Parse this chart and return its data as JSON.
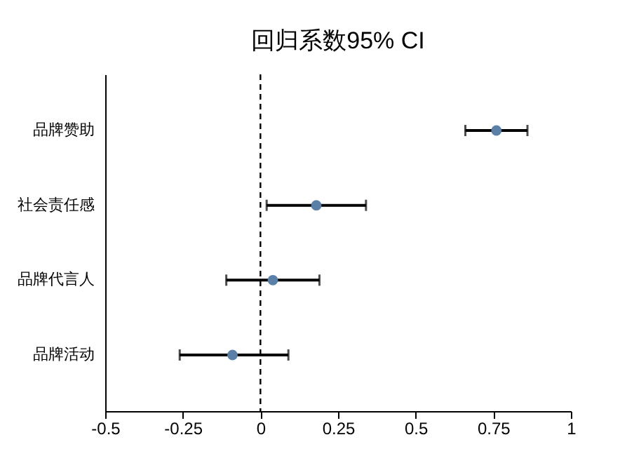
{
  "chart_data": {
    "type": "scatter",
    "title": "回归系数95% CI",
    "orientation": "horizontal",
    "categories": [
      "品牌赞助",
      "社会责任感",
      "品牌代言人",
      "品牌活动"
    ],
    "series": [
      {
        "color": "#5b80a8",
        "values": [
          0.76,
          0.18,
          0.04,
          -0.09
        ],
        "errors": [
          [
            0.66,
            0.86
          ],
          [
            0.02,
            0.34
          ],
          [
            -0.11,
            0.19
          ],
          [
            -0.26,
            0.09
          ]
        ]
      }
    ],
    "xlim": [
      -0.5,
      1
    ],
    "xticks": [
      -0.5,
      -0.25,
      0,
      0.25,
      0.5,
      0.75,
      1
    ],
    "ref_lines": [
      {
        "axis": "x",
        "value": 0,
        "line_style": "dashed",
        "color": "#000000"
      }
    ],
    "grid": false,
    "marker": "circle"
  }
}
